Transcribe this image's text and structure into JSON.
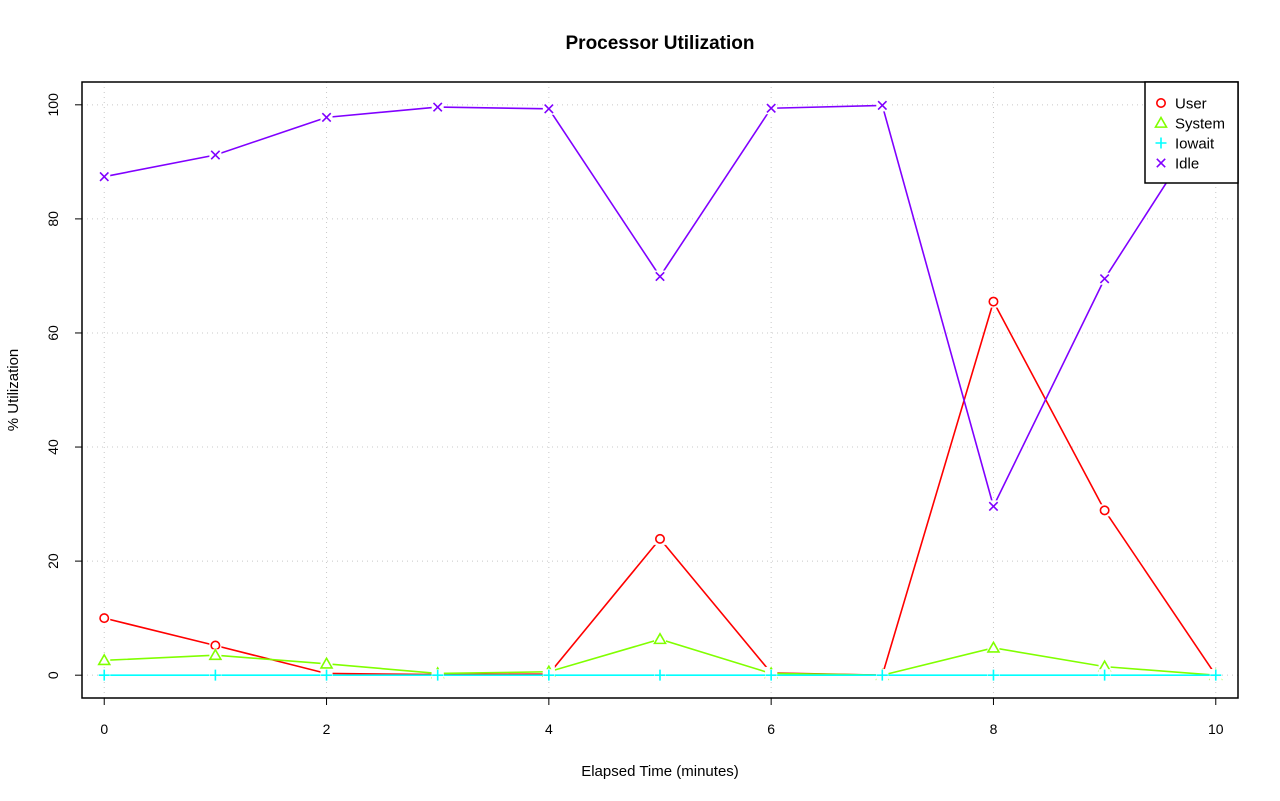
{
  "chart_data": {
    "type": "line",
    "title": "Processor Utilization",
    "xlabel": "Elapsed Time (minutes)",
    "ylabel": "% Utilization",
    "x": [
      0,
      1,
      2,
      3,
      4,
      5,
      6,
      7,
      8,
      9,
      10
    ],
    "xlim": [
      -0.2,
      10.2
    ],
    "ylim": [
      -4,
      104
    ],
    "xticks": [
      0,
      2,
      4,
      6,
      8,
      10
    ],
    "yticks": [
      0,
      20,
      40,
      60,
      80,
      100
    ],
    "grid": true,
    "legend_position": "top-right",
    "series": [
      {
        "name": "User",
        "color": "#ff0000",
        "marker": "circle",
        "values": [
          10.0,
          5.2,
          0.3,
          0.1,
          0.2,
          23.9,
          0.4,
          0.0,
          65.5,
          28.9,
          0.0
        ]
      },
      {
        "name": "System",
        "color": "#80ff00",
        "marker": "triangle",
        "values": [
          2.6,
          3.5,
          2.0,
          0.3,
          0.6,
          6.3,
          0.3,
          0.0,
          4.8,
          1.5,
          0.0
        ]
      },
      {
        "name": "Iowait",
        "color": "#00ffff",
        "marker": "plus",
        "values": [
          0.0,
          0.0,
          0.0,
          0.0,
          0.0,
          0.0,
          0.0,
          0.0,
          0.0,
          0.0,
          0.0
        ]
      },
      {
        "name": "Idle",
        "color": "#8000ff",
        "marker": "cross",
        "values": [
          87.4,
          91.2,
          97.8,
          99.6,
          99.3,
          69.9,
          99.4,
          99.9,
          29.6,
          69.5,
          99.8
        ]
      }
    ]
  }
}
